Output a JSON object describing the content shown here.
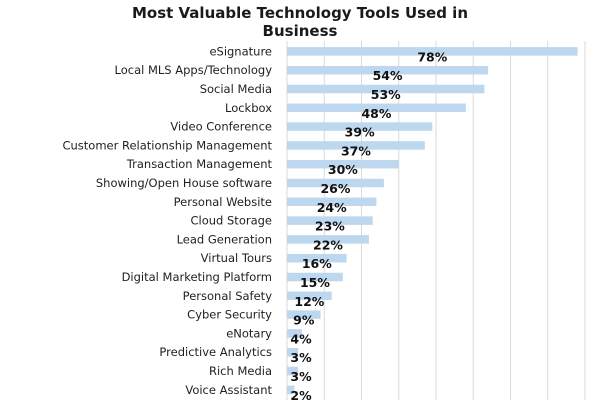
{
  "chart_data": {
    "type": "bar",
    "orientation": "horizontal",
    "title_lines": [
      "Most Valuable Technology Tools Used in",
      "Business"
    ],
    "categories": [
      "eSignature",
      "Local MLS Apps/Technology",
      "Social Media",
      "Lockbox",
      "Video Conference",
      "Customer Relationship Management",
      "Transaction Management",
      "Showing/Open House software",
      "Personal Website",
      "Cloud Storage",
      "Lead Generation",
      "Virtual Tours",
      "Digital Marketing Platform",
      "Personal Safety",
      "Cyber Security",
      "eNotary",
      "Predictive Analytics",
      "Rich Media",
      "Voice Assistant"
    ],
    "values": [
      78,
      54,
      53,
      48,
      39,
      37,
      30,
      26,
      24,
      23,
      22,
      16,
      15,
      12,
      9,
      4,
      3,
      3,
      2
    ],
    "value_labels": [
      "78%",
      "54%",
      "53%",
      "48%",
      "39%",
      "37%",
      "30%",
      "26%",
      "24%",
      "23%",
      "22%",
      "16%",
      "15%",
      "12%",
      "9%",
      "4%",
      "3%",
      "3%",
      "2%"
    ],
    "xlim": [
      0,
      80
    ],
    "grid": true,
    "bar_color": "#bdd7ee",
    "grid_color": "#d9d9d9"
  }
}
